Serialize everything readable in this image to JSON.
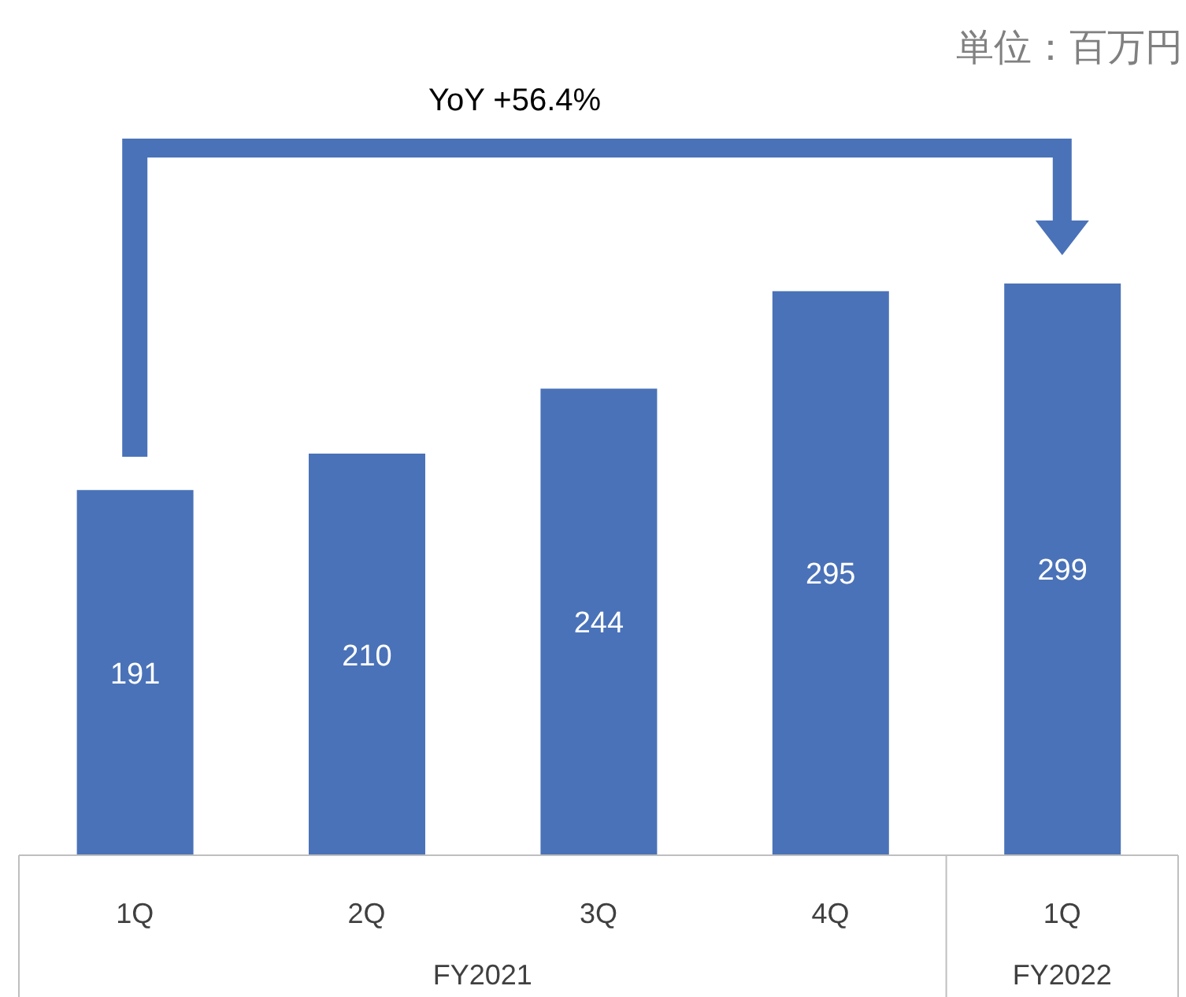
{
  "chart_data": {
    "type": "bar",
    "categories": [
      "1Q",
      "2Q",
      "3Q",
      "4Q",
      "1Q"
    ],
    "values": [
      191,
      210,
      244,
      295,
      299
    ],
    "color": "#4a72b8",
    "data_labels": true,
    "annotations": [
      "単位：百万円",
      "YoY +56.4%",
      "FY2021",
      "FY2022"
    ]
  }
}
